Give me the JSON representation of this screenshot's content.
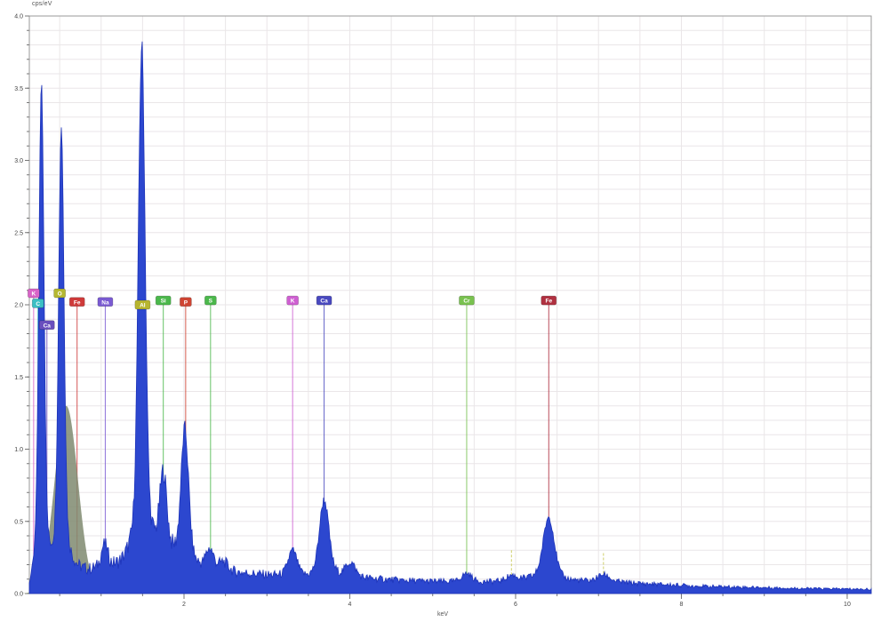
{
  "chart_data": {
    "type": "area",
    "title": "cps/eV",
    "xlabel": "keV",
    "ylabel": "cps/eV",
    "xlim": [
      0.134,
      10.29
    ],
    "ylim": [
      0,
      4.0
    ],
    "x_ticks": [
      2,
      4,
      6,
      8,
      10
    ],
    "y_ticks": [
      0.0,
      0.5,
      1.0,
      1.5,
      2.0,
      2.5,
      3.0,
      3.5,
      4.0
    ],
    "x_minor_step": 0.5,
    "y_minor_step": 0.1,
    "grid": true,
    "legend": "none",
    "colors": {
      "spectrum_fill": "#2c47cf",
      "spectrum_edge": "#1d33b8",
      "grid_line": "#eae6e8",
      "plot_border": "#9a9a9a",
      "tick": "#777777",
      "tick_label": "#444444",
      "background_fit": "#7f8a70"
    },
    "elements_identified": [
      "C",
      "O",
      "Na",
      "Al",
      "Si",
      "P",
      "S",
      "K",
      "Ca",
      "Cr",
      "Fe"
    ],
    "peaks": [
      {
        "id": "C-Ka",
        "energy": 0.28,
        "height": 3.42,
        "sigma": 0.03
      },
      {
        "id": "O-Ka",
        "energy": 0.52,
        "height": 3.05,
        "sigma": 0.032
      },
      {
        "id": "Na-Ka",
        "energy": 1.04,
        "height": 0.16,
        "sigma": 0.038
      },
      {
        "id": "Al-Ka",
        "energy": 1.49,
        "height": 3.52,
        "sigma": 0.04
      },
      {
        "id": "Si-Ka",
        "energy": 1.75,
        "height": 0.55,
        "sigma": 0.042
      },
      {
        "id": "P-Ka",
        "energy": 2.01,
        "height": 0.9,
        "sigma": 0.044
      },
      {
        "id": "S-Ka",
        "energy": 2.31,
        "height": 0.15,
        "sigma": 0.046
      },
      {
        "id": "bump",
        "energy": 2.48,
        "height": 0.05,
        "sigma": 0.05
      },
      {
        "id": "K-Ka",
        "energy": 3.31,
        "height": 0.18,
        "sigma": 0.052
      },
      {
        "id": "Ca-Ka",
        "energy": 3.69,
        "height": 0.52,
        "sigma": 0.055
      },
      {
        "id": "Ca-Kb",
        "energy": 4.01,
        "height": 0.1,
        "sigma": 0.055
      },
      {
        "id": "Cr-Ka",
        "energy": 5.41,
        "height": 0.06,
        "sigma": 0.06
      },
      {
        "id": "Mn-Ka",
        "energy": 5.95,
        "height": 0.04,
        "sigma": 0.062
      },
      {
        "id": "Fe-Ka",
        "energy": 6.4,
        "height": 0.43,
        "sigma": 0.065
      },
      {
        "id": "Fe-Kb",
        "energy": 7.06,
        "height": 0.05,
        "sigma": 0.068
      }
    ],
    "continuum": [
      [
        0.134,
        0.02
      ],
      [
        0.16,
        0.06
      ],
      [
        0.2,
        0.1
      ],
      [
        0.3,
        0.13
      ],
      [
        0.4,
        0.16
      ],
      [
        0.55,
        0.2
      ],
      [
        0.7,
        0.19
      ],
      [
        0.85,
        0.17
      ],
      [
        1.0,
        0.18
      ],
      [
        1.2,
        0.21
      ],
      [
        1.4,
        0.26
      ],
      [
        1.55,
        0.29
      ],
      [
        1.7,
        0.29
      ],
      [
        1.85,
        0.27
      ],
      [
        2.0,
        0.24
      ],
      [
        2.15,
        0.19
      ],
      [
        2.3,
        0.16
      ],
      [
        2.45,
        0.17
      ],
      [
        2.6,
        0.15
      ],
      [
        2.8,
        0.14
      ],
      [
        3.0,
        0.13
      ],
      [
        3.25,
        0.12
      ],
      [
        3.5,
        0.11
      ],
      [
        3.7,
        0.13
      ],
      [
        3.9,
        0.12
      ],
      [
        4.1,
        0.11
      ],
      [
        4.4,
        0.1
      ],
      [
        4.7,
        0.09
      ],
      [
        5.0,
        0.085
      ],
      [
        5.3,
        0.08
      ],
      [
        5.6,
        0.08
      ],
      [
        5.9,
        0.085
      ],
      [
        6.2,
        0.1
      ],
      [
        6.4,
        0.1
      ],
      [
        6.6,
        0.09
      ],
      [
        6.9,
        0.085
      ],
      [
        7.2,
        0.08
      ],
      [
        7.5,
        0.07
      ],
      [
        7.9,
        0.06
      ],
      [
        8.3,
        0.05
      ],
      [
        8.7,
        0.045
      ],
      [
        9.1,
        0.04
      ],
      [
        9.5,
        0.035
      ],
      [
        10.29,
        0.03
      ]
    ],
    "background_fit": {
      "center": 0.58,
      "height": 1.3,
      "sigma": 0.14,
      "opacity": 0.85
    },
    "markers": [
      {
        "id": "K-L",
        "symbol": "K",
        "label_e": 0.186,
        "label_v": 2.08,
        "color": "#d964c8"
      },
      {
        "id": "C-K",
        "symbol": "C",
        "label_e": 0.238,
        "label_v": 2.01,
        "color": "#3bbfc4"
      },
      {
        "id": "Ca-L",
        "symbol": "Ca",
        "label_e": 0.346,
        "label_v": 1.86,
        "color": "#6a4fbe"
      },
      {
        "id": "O-K",
        "symbol": "O",
        "label_e": 0.5,
        "label_v": 2.08,
        "color": "#b5b832"
      },
      {
        "id": "Fe-L",
        "symbol": "Fe",
        "label_e": 0.71,
        "label_v": 2.02,
        "color": "#cf3a3a"
      },
      {
        "id": "Na-K",
        "symbol": "Na",
        "label_e": 1.05,
        "label_v": 2.02,
        "color": "#7a5ad2"
      },
      {
        "id": "Al-K",
        "symbol": "Al",
        "label_e": 1.5,
        "label_v": 2.0,
        "color": "#b7b52f"
      },
      {
        "id": "Si-K",
        "symbol": "Si",
        "label_e": 1.75,
        "label_v": 2.03,
        "color": "#4bb84b"
      },
      {
        "id": "P-K",
        "symbol": "P",
        "label_e": 2.02,
        "label_v": 2.02,
        "color": "#cf4433"
      },
      {
        "id": "S-K",
        "symbol": "S",
        "label_e": 2.32,
        "label_v": 2.03,
        "color": "#4bb84b"
      },
      {
        "id": "K-K",
        "symbol": "K",
        "label_e": 3.31,
        "label_v": 2.03,
        "color": "#cf5fd2"
      },
      {
        "id": "Ca-K",
        "symbol": "Ca",
        "label_e": 3.69,
        "label_v": 2.03,
        "color": "#4949c0"
      },
      {
        "id": "Cr-K",
        "symbol": "Cr",
        "label_e": 5.41,
        "label_v": 2.03,
        "color": "#79c24f"
      },
      {
        "id": "Fe-K",
        "symbol": "Fe",
        "label_e": 6.4,
        "label_v": 2.03,
        "color": "#b03040"
      }
    ],
    "unlabeled_lines": [
      {
        "energy": 5.95,
        "color": "#cfcf6a",
        "top_v": 0.3
      },
      {
        "energy": 7.06,
        "color": "#cfcf6a",
        "top_v": 0.28
      }
    ]
  }
}
